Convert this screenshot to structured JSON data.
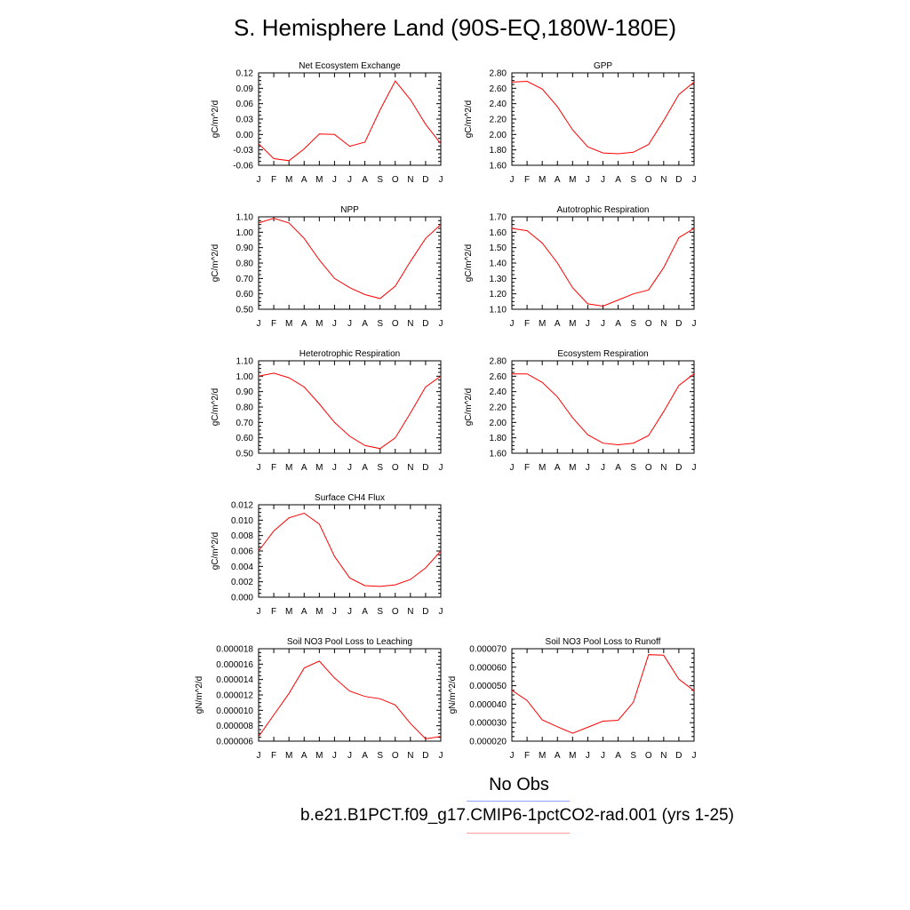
{
  "title": "S. Hemisphere Land (90S-EQ,180W-180E)",
  "legend": {
    "obs_label": "No Obs",
    "obs_color": "#8fa0ff",
    "model_label": "b.e21.B1PCT.f09_g17.CMIP6-1pctCO2-rad.001 (yrs 1-25)",
    "model_color": "#ff9a9a"
  },
  "line_color": "#ff0000",
  "chart_data": [
    {
      "type": "line",
      "title": "Net Ecosystem Exchange",
      "ylabel": "gC/m^2/d",
      "categories": [
        "J",
        "F",
        "M",
        "A",
        "M",
        "J",
        "J",
        "A",
        "S",
        "O",
        "N",
        "D",
        "J"
      ],
      "ylim": [
        -0.06,
        0.12
      ],
      "yticks": [
        "-0.06",
        "-0.03",
        "0.00",
        "0.03",
        "0.06",
        "0.09",
        "0.12"
      ],
      "values": [
        -0.018,
        -0.047,
        -0.051,
        -0.028,
        0.001,
        0.0,
        -0.023,
        -0.015,
        0.048,
        0.104,
        0.068,
        0.02,
        -0.018
      ]
    },
    {
      "type": "line",
      "title": "GPP",
      "ylabel": "gC/m^2/d",
      "categories": [
        "J",
        "F",
        "M",
        "A",
        "M",
        "J",
        "J",
        "A",
        "S",
        "O",
        "N",
        "D",
        "J"
      ],
      "ylim": [
        1.6,
        2.8
      ],
      "yticks": [
        "1.60",
        "1.80",
        "2.00",
        "2.20",
        "2.40",
        "2.60",
        "2.80"
      ],
      "values": [
        2.68,
        2.69,
        2.59,
        2.36,
        2.06,
        1.84,
        1.76,
        1.75,
        1.77,
        1.87,
        2.18,
        2.52,
        2.68
      ]
    },
    {
      "type": "line",
      "title": "NPP",
      "ylabel": "gC/m^2/d",
      "categories": [
        "J",
        "F",
        "M",
        "A",
        "M",
        "J",
        "J",
        "A",
        "S",
        "O",
        "N",
        "D",
        "J"
      ],
      "ylim": [
        0.5,
        1.1
      ],
      "yticks": [
        "0.50",
        "0.60",
        "0.70",
        "0.80",
        "0.90",
        "1.00",
        "1.10"
      ],
      "values": [
        1.06,
        1.09,
        1.06,
        0.96,
        0.82,
        0.7,
        0.64,
        0.595,
        0.57,
        0.65,
        0.81,
        0.96,
        1.05
      ]
    },
    {
      "type": "line",
      "title": "Autotrophic Respiration",
      "ylabel": "gC/m^2/d",
      "categories": [
        "J",
        "F",
        "M",
        "A",
        "M",
        "J",
        "J",
        "A",
        "S",
        "O",
        "N",
        "D",
        "J"
      ],
      "ylim": [
        1.1,
        1.7
      ],
      "yticks": [
        "1.10",
        "1.20",
        "1.30",
        "1.40",
        "1.50",
        "1.60",
        "1.70"
      ],
      "values": [
        1.625,
        1.61,
        1.53,
        1.4,
        1.24,
        1.135,
        1.12,
        1.16,
        1.2,
        1.225,
        1.37,
        1.565,
        1.625
      ]
    },
    {
      "type": "line",
      "title": "Heterotrophic Respiration",
      "ylabel": "gC/m^2/d",
      "categories": [
        "J",
        "F",
        "M",
        "A",
        "M",
        "J",
        "J",
        "A",
        "S",
        "O",
        "N",
        "D",
        "J"
      ],
      "ylim": [
        0.5,
        1.1
      ],
      "yticks": [
        "0.50",
        "0.60",
        "0.70",
        "0.80",
        "0.90",
        "1.00",
        "1.10"
      ],
      "values": [
        1.0,
        1.02,
        0.99,
        0.93,
        0.82,
        0.7,
        0.61,
        0.55,
        0.53,
        0.6,
        0.76,
        0.93,
        1.0
      ]
    },
    {
      "type": "line",
      "title": "Ecosystem Respiration",
      "ylabel": "gC/m^2/d",
      "categories": [
        "J",
        "F",
        "M",
        "A",
        "M",
        "J",
        "J",
        "A",
        "S",
        "O",
        "N",
        "D",
        "J"
      ],
      "ylim": [
        1.6,
        2.8
      ],
      "yticks": [
        "1.60",
        "1.80",
        "2.00",
        "2.20",
        "2.40",
        "2.60",
        "2.80"
      ],
      "values": [
        2.63,
        2.63,
        2.52,
        2.33,
        2.06,
        1.84,
        1.73,
        1.71,
        1.73,
        1.83,
        2.14,
        2.48,
        2.63
      ]
    },
    {
      "type": "line",
      "title": "Surface CH4 Flux",
      "ylabel": "gC/m^2/d",
      "categories": [
        "J",
        "F",
        "M",
        "A",
        "M",
        "J",
        "J",
        "A",
        "S",
        "O",
        "N",
        "D",
        "J"
      ],
      "ylim": [
        0.0,
        0.012
      ],
      "yticks": [
        "0.000",
        "0.002",
        "0.004",
        "0.006",
        "0.008",
        "0.010",
        "0.012"
      ],
      "values": [
        0.006,
        0.0086,
        0.0103,
        0.0109,
        0.0095,
        0.0053,
        0.0025,
        0.0015,
        0.0014,
        0.0016,
        0.0023,
        0.0038,
        0.006
      ]
    },
    {
      "type": "line",
      "title": "Soil NO3 Pool Loss to Leaching",
      "ylabel": "gN/m^2/d",
      "categories": [
        "J",
        "F",
        "M",
        "A",
        "M",
        "J",
        "J",
        "A",
        "S",
        "O",
        "N",
        "D",
        "J"
      ],
      "ylim": [
        6e-06,
        1.8e-05
      ],
      "yticks": [
        "0.000006",
        "0.000008",
        "0.000010",
        "0.000012",
        "0.000014",
        "0.000016",
        "0.000018"
      ],
      "values": [
        6.6e-06,
        9.4e-06,
        1.22e-05,
        1.55e-05,
        1.64e-05,
        1.42e-05,
        1.25e-05,
        1.18e-05,
        1.15e-05,
        1.07e-05,
        8.3e-06,
        6.3e-06,
        6.6e-06
      ]
    },
    {
      "type": "line",
      "title": "Soil NO3 Pool Loss to Runoff",
      "ylabel": "gN/m^2/d",
      "categories": [
        "J",
        "F",
        "M",
        "A",
        "M",
        "J",
        "J",
        "A",
        "S",
        "O",
        "N",
        "D",
        "J"
      ],
      "ylim": [
        2e-05,
        7e-05
      ],
      "yticks": [
        "0.000020",
        "0.000030",
        "0.000040",
        "0.000050",
        "0.000060",
        "0.000070"
      ],
      "values": [
        4.75e-05,
        4.2e-05,
        3.15e-05,
        2.78e-05,
        2.43e-05,
        2.75e-05,
        3.08e-05,
        3.13e-05,
        4.1e-05,
        6.68e-05,
        6.65e-05,
        5.35e-05,
        4.73e-05
      ]
    }
  ]
}
